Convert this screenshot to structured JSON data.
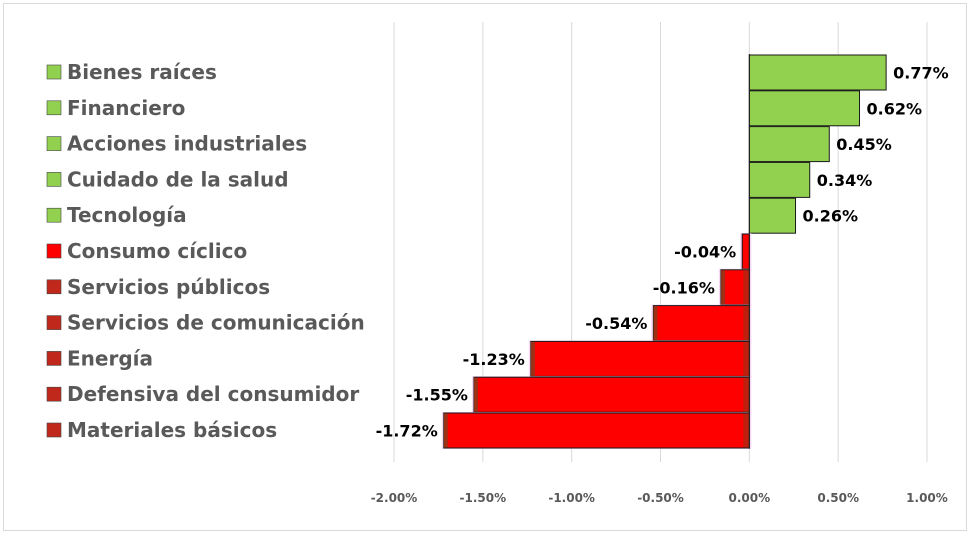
{
  "chart_data": {
    "type": "bar",
    "orientation": "horizontal",
    "categories": [
      "Bienes raíces",
      "Financiero",
      "Acciones industriales",
      "Cuidado de la salud",
      "Tecnología",
      "Consumo cíclico",
      "Servicios públicos",
      "Servicios de comunicación",
      "Energía",
      "Defensiva del consumidor",
      "Materiales básicos"
    ],
    "values": [
      0.77,
      0.62,
      0.45,
      0.34,
      0.26,
      -0.04,
      -0.16,
      -0.54,
      -1.23,
      -1.55,
      -1.72
    ],
    "value_labels": [
      "0.77%",
      "0.62%",
      "0.45%",
      "0.34%",
      "0.26%",
      "-0.04%",
      "-0.16%",
      "-0.54%",
      "-1.23%",
      "-1.55%",
      "-1.72%"
    ],
    "legend_colors": [
      "#92d050",
      "#92d050",
      "#92d050",
      "#92d050",
      "#92d050",
      "#ff0000",
      "#c0281c",
      "#c0281c",
      "#c0281c",
      "#c0281c",
      "#c0281c"
    ],
    "colors": {
      "positive": "#92d050",
      "negative": "#ff0000",
      "shade": "#8b3a1a"
    },
    "xlim": [
      -2.0,
      1.0
    ],
    "xticks": [
      -2.0,
      -1.5,
      -1.0,
      -0.5,
      0.0,
      0.5,
      1.0
    ],
    "xtick_labels": [
      "-2.00%",
      "-1.50%",
      "-1.00%",
      "-0.50%",
      "0.00%",
      "0.50%",
      "1.00%"
    ],
    "grid": true,
    "legend": "left",
    "title": "",
    "xlabel": "",
    "ylabel": ""
  }
}
